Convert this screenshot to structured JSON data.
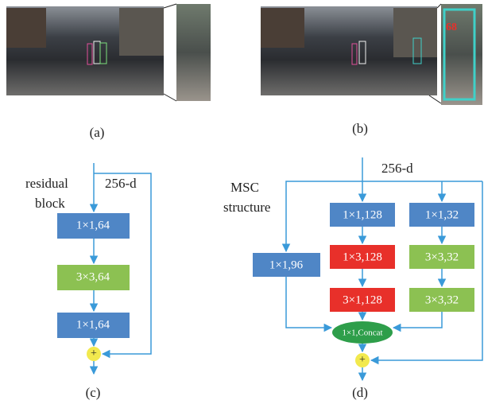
{
  "panels": {
    "a": {
      "label": "(a)"
    },
    "b": {
      "label": "(b)",
      "track_id": "68"
    },
    "c": {
      "label": "(c)",
      "title_lines": [
        "residual",
        "block"
      ],
      "input": "256-d",
      "boxes": [
        "1×1,64",
        "3×3,64",
        "1×1,64"
      ],
      "sum": "+"
    },
    "d": {
      "label": "(d)",
      "title_lines": [
        "MSC",
        "structure"
      ],
      "input": "256-d",
      "left_box": "1×1,96",
      "middle_boxes": [
        "1×1,128",
        "1×3,128",
        "3×1,128"
      ],
      "right_boxes": [
        "1×1,32",
        "3×3,32",
        "3×3,32"
      ],
      "concat": "1×1,Concat",
      "sum": "+"
    }
  }
}
